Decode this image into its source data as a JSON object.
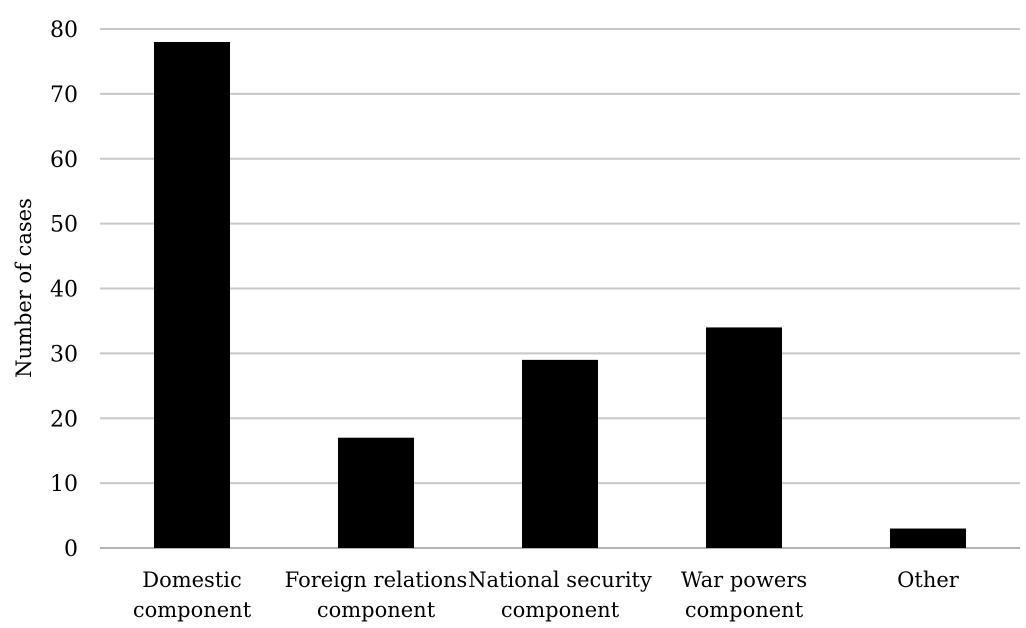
{
  "chart_data": {
    "type": "bar",
    "title": "",
    "xlabel": "",
    "ylabel": "Number of cases",
    "ylim": [
      0,
      80
    ],
    "yticks": [
      "0",
      "10",
      "20",
      "30",
      "40",
      "50",
      "60",
      "70",
      "80"
    ],
    "grid": true,
    "categories": [
      [
        "Domestic",
        "component"
      ],
      [
        "Foreign relations",
        "component"
      ],
      [
        "National security",
        "component"
      ],
      [
        "War powers",
        "component"
      ],
      [
        "Other"
      ]
    ],
    "values": [
      78,
      17,
      29,
      34,
      3
    ],
    "colors": {
      "bar": "#000000",
      "grid": "#c8c8c8",
      "axis": "#b4b4b4"
    }
  }
}
